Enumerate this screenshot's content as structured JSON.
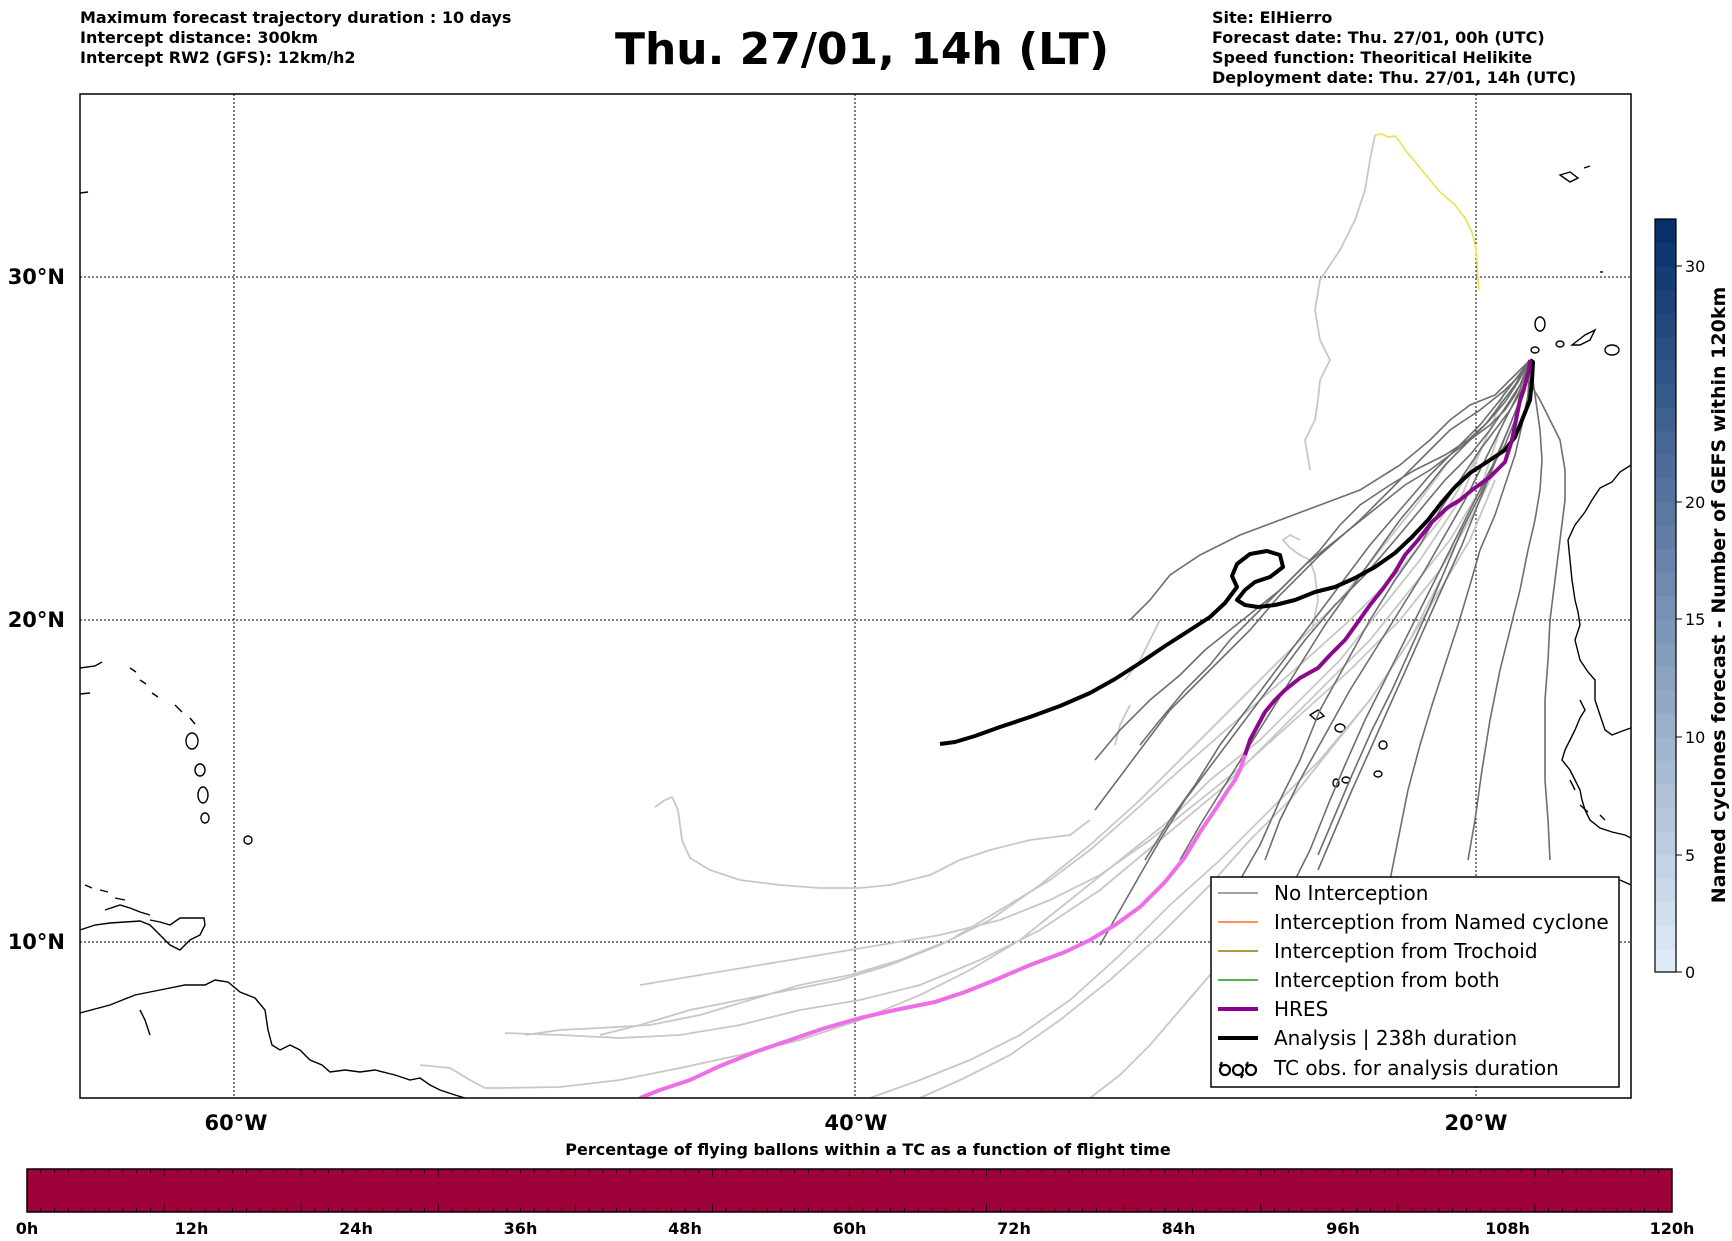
{
  "header": {
    "left": [
      "Maximum forecast trajectory duration : 10 days",
      "Intercept distance: 300km",
      "Intercept RW2 (GFS):  12km/h2"
    ],
    "title": "Thu. 27/01, 14h (LT)",
    "right": [
      "Site: ElHierro",
      "Forecast date: Thu. 27/01, 00h (UTC)",
      "Speed function: Theoritical Helikite",
      "Deployment date: Thu. 27/01, 14h (UTC)"
    ]
  },
  "map": {
    "lat_labels": [
      "30°N",
      "20°N",
      "10°N"
    ],
    "lon_labels": [
      "60°W",
      "40°W",
      "20°W"
    ]
  },
  "legend": {
    "items": [
      {
        "label": "No Interception",
        "color": "#808080"
      },
      {
        "label": "Interception from Named cyclone",
        "color": "#ff6a1f"
      },
      {
        "label": "Interception from Trochoid",
        "color": "#8b7d00"
      },
      {
        "label": "Interception from both",
        "color": "#1a9a1a"
      },
      {
        "label": "HRES",
        "color": "#8b008b"
      },
      {
        "label": "Analysis | 238h duration",
        "color": "#000000"
      },
      {
        "label": "TC obs. for analysis duration",
        "color": "#000000",
        "icon": "cyclone-symbols"
      }
    ]
  },
  "colorbar": {
    "label": "Named cyclones forecast - Number of GEFS within 120km",
    "ticks": [
      "0",
      "5",
      "10",
      "15",
      "20",
      "30"
    ]
  },
  "timeline": {
    "title": "Percentage of flying ballons within a TC as a function of flight time",
    "fill_color": "#9e003a",
    "ticks": [
      "0h",
      "12h",
      "24h",
      "36h",
      "48h",
      "60h",
      "72h",
      "84h",
      "96h",
      "108h",
      "120h"
    ]
  }
}
